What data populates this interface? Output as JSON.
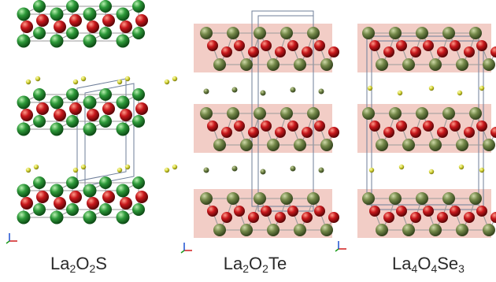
{
  "colors": {
    "lanthanum_La2O2S": "#2e9a3a",
    "lanthanum_other": "#75894a",
    "oxygen": "#c8181c",
    "chalcogen": "#d8d83a",
    "layer_band": "#f2cdc6",
    "cell_edge": "#6f7f9a"
  },
  "panels": [
    {
      "name": "la2o2s",
      "formula": [
        {
          "t": "La"
        },
        {
          "s": "2"
        },
        {
          "t": "O"
        },
        {
          "s": "2"
        },
        {
          "t": "S"
        }
      ]
    },
    {
      "name": "la2o2te",
      "formula": [
        {
          "t": "La"
        },
        {
          "s": "2"
        },
        {
          "t": "O"
        },
        {
          "s": "2"
        },
        {
          "t": "Te"
        }
      ]
    },
    {
      "name": "la4o4se3",
      "formula": [
        {
          "t": "La"
        },
        {
          "s": "4"
        },
        {
          "t": "O"
        },
        {
          "s": "4"
        },
        {
          "t": "Se"
        },
        {
          "s": "3"
        }
      ]
    }
  ]
}
